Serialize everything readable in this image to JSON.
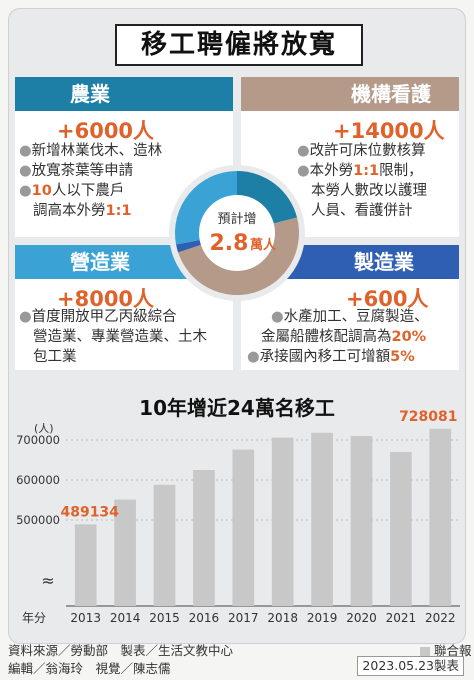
{
  "title": "移工聘僱將放寬",
  "center": {
    "label": "預計增",
    "value": "2.8",
    "unit": "萬人"
  },
  "agriculture": {
    "heading": "農業",
    "amount": "+6000人",
    "line1": "新增林業伐木、造林",
    "line2": "放寬茶葉等申請",
    "line3a": "10",
    "line3b": "人以下農戶",
    "line4a": "調高本外勞",
    "line4b": "1:1"
  },
  "institution": {
    "heading": "機構看護",
    "amount": "+14000人",
    "line1": "改許可床位數核算",
    "line2a": "本外勞",
    "line2b": "1:1",
    "line2c": "限制，",
    "line3": "本勞人數改以護理",
    "line4": "人員、看護併計"
  },
  "construction": {
    "heading": "營造業",
    "amount": "+8000人",
    "line1": "首度開放甲乙丙級綜合",
    "line2": "營造業、專業營造業、土木",
    "line3": "包工業"
  },
  "manufacturing": {
    "heading": "製造業",
    "amount": "+600人",
    "line1": "水產加工、豆腐製造、",
    "line2a": "金屬船體核配調高為",
    "line2b": "20%",
    "line3a": "承接國內移工可增額",
    "line3b": "5%"
  },
  "donut_data": {
    "segments": [
      {
        "name": "農業",
        "value": 6000,
        "color": "#1e7fa6"
      },
      {
        "name": "機構看護",
        "value": 14000,
        "color": "#b59a8a"
      },
      {
        "name": "製造業",
        "value": 600,
        "color": "#2f5fb2"
      },
      {
        "name": "營造業",
        "value": 8000,
        "color": "#3aa2d4"
      }
    ]
  },
  "chart_data": {
    "type": "bar",
    "title": "10年增近24萬名移工",
    "ylabel": "(人)",
    "xlabel": "年分",
    "categories": [
      "2013",
      "2014",
      "2015",
      "2016",
      "2017",
      "2018",
      "2019",
      "2020",
      "2021",
      "2022"
    ],
    "values": [
      489134,
      551000,
      588000,
      625000,
      676000,
      706000,
      718000,
      710000,
      670000,
      728081
    ],
    "yticks": [
      "700000",
      "600000",
      "500000"
    ],
    "ylim": [
      400000,
      750000
    ],
    "axis_break": "≈",
    "highlight_labels": {
      "0": "489134",
      "9": "728081"
    },
    "bar_color": "#c8c8c8",
    "label_color": "#e0622b"
  },
  "footer": {
    "source": "資料來源／勞動部　製表／生活文教中心",
    "editor": "編輯／翁海玲　視覺／陳志儒",
    "publisher": "聯合報",
    "date": "2023.05.23製表"
  }
}
